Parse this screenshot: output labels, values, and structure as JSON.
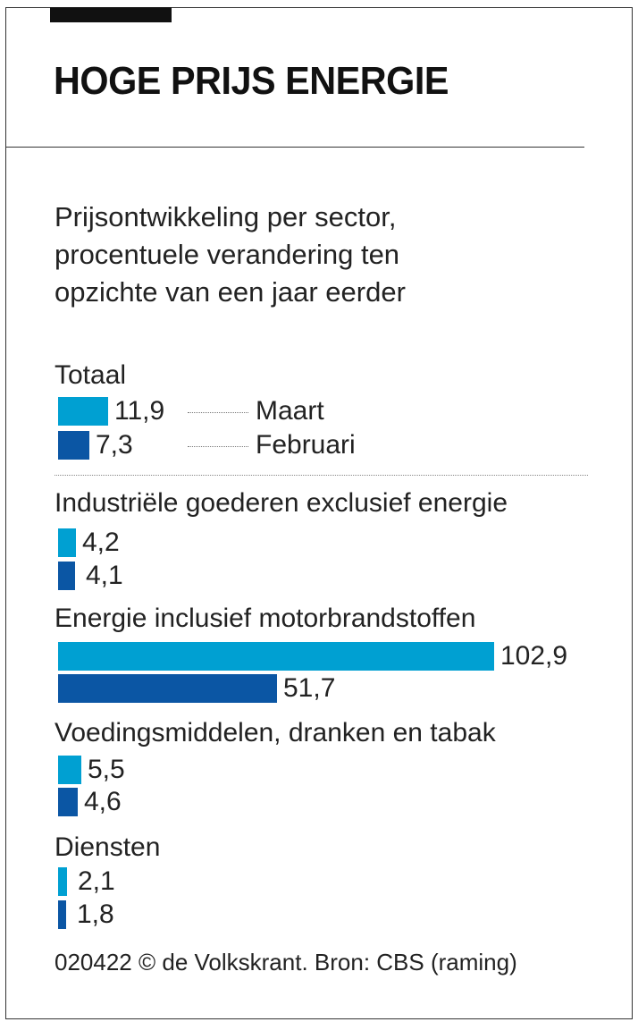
{
  "chart_data": {
    "type": "bar",
    "orientation": "horizontal",
    "title": "HOGE PRIJS ENERGIE",
    "subtitle": [
      "Prijsontwikkeling per sector,",
      "procentuele verandering ten",
      "opzichte van een jaar eerder"
    ],
    "categories": [
      "Totaal",
      "Industriële goederen exclusief energie",
      "Energie inclusief motorbrandstoffen",
      "Voedingsmiddelen, dranken en tabak",
      "Diensten"
    ],
    "series": [
      {
        "name": "Maart",
        "values": [
          11.9,
          4.2,
          102.9,
          5.5,
          2.1
        ],
        "labels": [
          "11,9",
          "4,2",
          "102,9",
          "5,5",
          "2,1"
        ],
        "color": "#00a0d2"
      },
      {
        "name": "Februari",
        "values": [
          7.3,
          4.1,
          51.7,
          4.6,
          1.8
        ],
        "labels": [
          "7,3",
          "4,1",
          "51,7",
          "4,6",
          "1,8"
        ],
        "color": "#0b56a4"
      }
    ],
    "legend": "inline-under-first-category",
    "source": "020422 © de Volkskrant. Bron: CBS (raming)"
  }
}
